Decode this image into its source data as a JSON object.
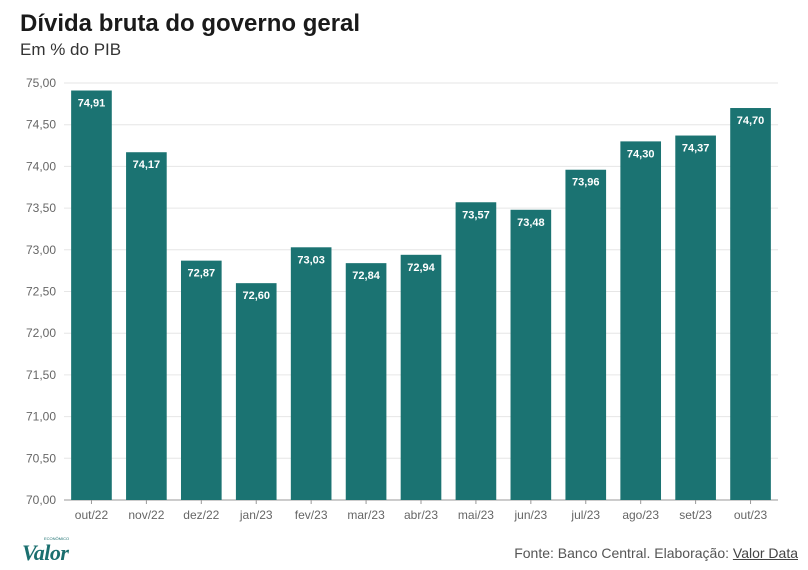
{
  "header": {
    "title": "Dívida bruta do governo geral",
    "subtitle": "Em % do PIB"
  },
  "footer": {
    "source_prefix": "Fonte: Banco Central. Elaboração: ",
    "source_link": "Valor Data",
    "logo_text": "Valor",
    "logo_small": "ECONÔMICO"
  },
  "colors": {
    "bar": "#1b7372",
    "grid": "#e6e6e6",
    "axis": "#999999"
  },
  "chart_data": {
    "type": "bar",
    "title": "Dívida bruta do governo geral",
    "subtitle": "Em % do PIB",
    "categories": [
      "out/22",
      "nov/22",
      "dez/22",
      "jan/23",
      "fev/23",
      "mar/23",
      "abr/23",
      "mai/23",
      "jun/23",
      "jul/23",
      "ago/23",
      "set/23",
      "out/23"
    ],
    "values": [
      74.91,
      74.17,
      72.87,
      72.6,
      73.03,
      72.84,
      72.94,
      73.57,
      73.48,
      73.96,
      74.3,
      74.37,
      74.7
    ],
    "value_labels": [
      "74,91",
      "74,17",
      "72,87",
      "72,60",
      "73,03",
      "72,84",
      "72,94",
      "73,57",
      "73,48",
      "73,96",
      "74,30",
      "74,37",
      "74,70"
    ],
    "y_ticks": [
      "70,00",
      "70,50",
      "71,00",
      "71,50",
      "72,00",
      "72,50",
      "73,00",
      "73,50",
      "74,00",
      "74,50",
      "75,00"
    ],
    "ylim": [
      70,
      75
    ],
    "grid": true,
    "xlabel": "",
    "ylabel": ""
  }
}
